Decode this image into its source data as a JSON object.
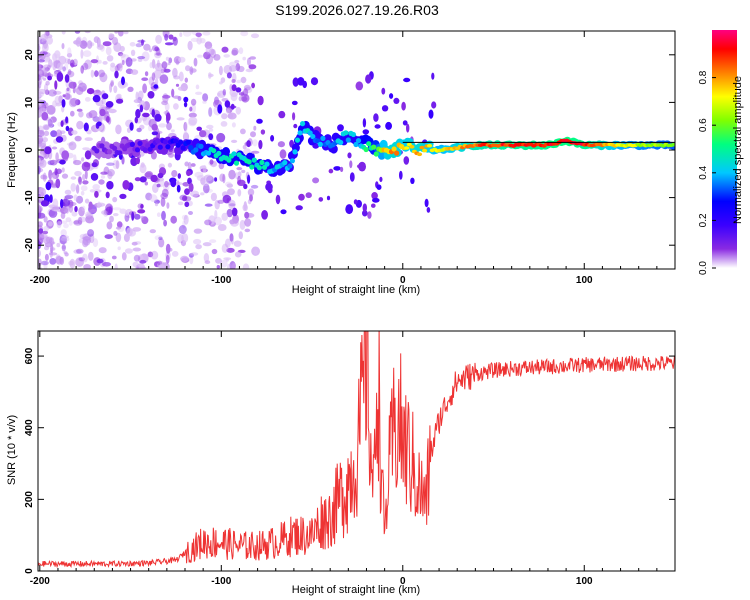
{
  "figure": {
    "title": "S199.2026.027.19.26.R03"
  },
  "chart_data": [
    {
      "type": "heatmap",
      "title": "S199.2026.027.19.26.R03",
      "xlabel": "Height of straight line (km)",
      "ylabel": "Frequency (Hz)",
      "xlim": [
        -201,
        150
      ],
      "ylim": [
        -25,
        25
      ],
      "xticks": [
        -200,
        -100,
        0,
        100
      ],
      "yticks": [
        -20,
        -10,
        0,
        10,
        20
      ],
      "xticklabels": [
        "-200",
        "-100",
        "0",
        "100"
      ],
      "yticklabels": [
        "-20",
        "-10",
        "0",
        "10",
        "20"
      ],
      "colorbar": {
        "label": "Normalized spectral amplitude",
        "range": [
          0,
          1
        ],
        "ticks": [
          0.0,
          0.2,
          0.4,
          0.6,
          0.8
        ],
        "ticklabels": [
          "0.0",
          "0.2",
          "0.4",
          "0.6",
          "0.8"
        ],
        "colors": [
          "#ffffff",
          "#8a2be2",
          "#3a00ff",
          "#0000ff",
          "#00c8ff",
          "#00ff80",
          "#80ff00",
          "#ffff00",
          "#ff8000",
          "#ff0000",
          "#ff0080"
        ]
      },
      "ridge": {
        "x": [
          -160,
          -140,
          -120,
          -110,
          -100,
          -90,
          -80,
          -70,
          -62,
          -55,
          -50,
          -45,
          -40,
          -35,
          -30,
          -25,
          -20,
          -15,
          -10,
          -5,
          0,
          10,
          20,
          40,
          60,
          80,
          90,
          100,
          120,
          150
        ],
        "frequency": [
          0,
          1,
          1,
          0,
          -1,
          -2,
          -3,
          -4,
          -3,
          5,
          3,
          2,
          1,
          2,
          3,
          2,
          1,
          0,
          0,
          0,
          1,
          0,
          0,
          1,
          1,
          1,
          2,
          1,
          1,
          1
        ],
        "amplitude": [
          0.1,
          0.15,
          0.25,
          0.4,
          0.45,
          0.45,
          0.45,
          0.4,
          0.35,
          0.45,
          0.4,
          0.35,
          0.35,
          0.4,
          0.4,
          0.4,
          0.5,
          0.55,
          0.75,
          0.8,
          0.75,
          0.8,
          0.7,
          0.85,
          0.9,
          0.92,
          0.95,
          0.92,
          0.7,
          0.6
        ]
      }
    },
    {
      "type": "line",
      "xlabel": "Height of straight line (km)",
      "ylabel": "SNR (10 * v/v)",
      "xlim": [
        -201,
        150
      ],
      "ylim": [
        0,
        670
      ],
      "xticks": [
        -200,
        -100,
        0,
        100
      ],
      "yticks": [
        0,
        200,
        400,
        600
      ],
      "xticklabels": [
        "-200",
        "-100",
        "0",
        "100"
      ],
      "yticklabels": [
        "0",
        "200",
        "400",
        "600"
      ],
      "color": "#ee3333",
      "series": [
        {
          "name": "SNR",
          "x": [
            -201,
            -180,
            -160,
            -140,
            -125,
            -120,
            -110,
            -100,
            -90,
            -80,
            -70,
            -60,
            -50,
            -45,
            -40,
            -35,
            -30,
            -25,
            -22,
            -20,
            -18,
            -16,
            -14,
            -12,
            -10,
            -8,
            -5,
            -2,
            0,
            3,
            5,
            8,
            10,
            13,
            15,
            20,
            25,
            30,
            40,
            50,
            60,
            80,
            100,
            120,
            140,
            150
          ],
          "y": [
            20,
            20,
            20,
            22,
            30,
            50,
            80,
            80,
            70,
            70,
            80,
            100,
            100,
            140,
            150,
            200,
            250,
            320,
            480,
            640,
            380,
            200,
            620,
            300,
            100,
            260,
            380,
            420,
            360,
            330,
            300,
            250,
            220,
            190,
            320,
            420,
            480,
            530,
            550,
            560,
            565,
            570,
            575,
            578,
            580,
            580
          ]
        }
      ]
    }
  ]
}
